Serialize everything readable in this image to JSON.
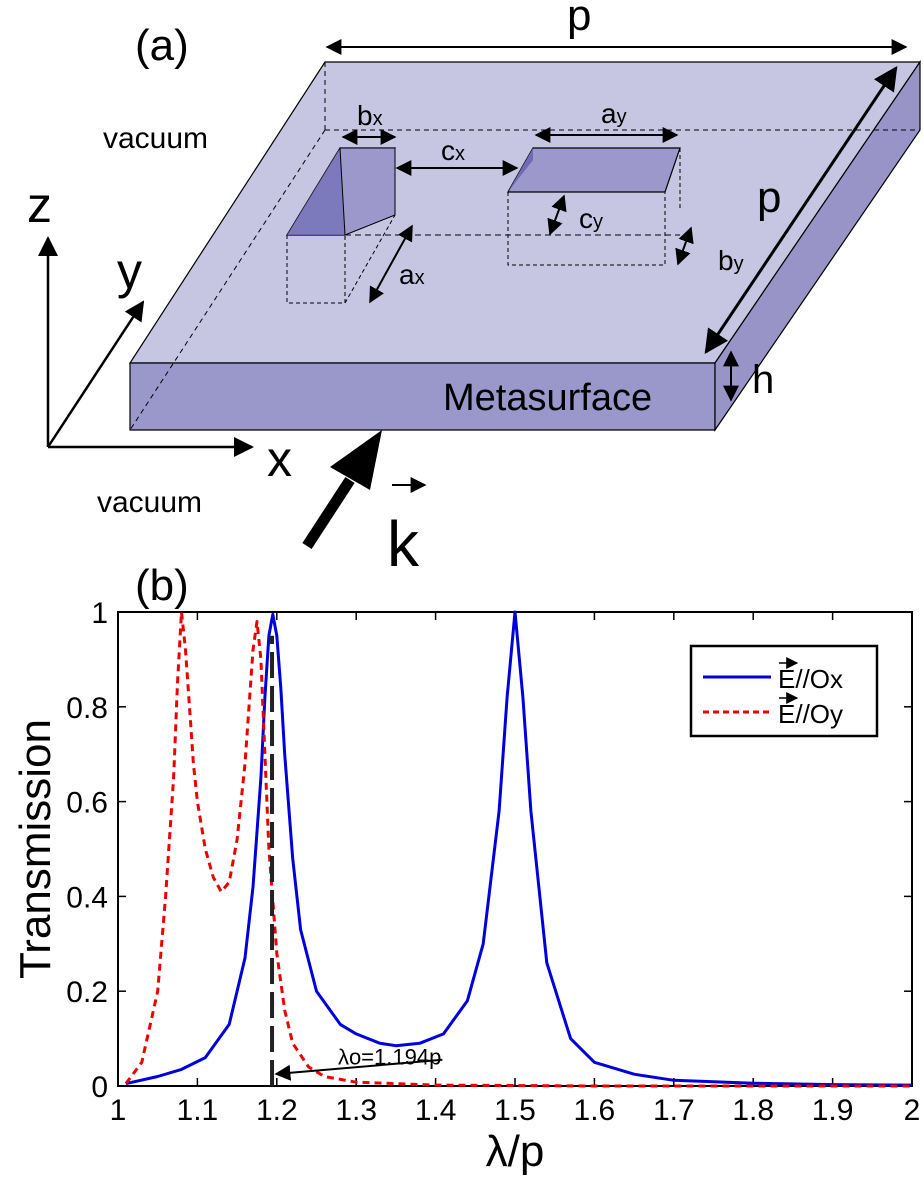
{
  "panel_a": {
    "label": "(a)",
    "vacuum_top": "vacuum",
    "vacuum_bottom": "vacuum",
    "slab_label": "Metasurface",
    "dims": {
      "p_top": "p",
      "p_side": "p",
      "h": "h",
      "bx": "b",
      "bx_sub": "x",
      "ay": "a",
      "ay_sub": "y",
      "cx": "c",
      "cx_sub": "x",
      "cy": "c",
      "cy_sub": "y",
      "ax": "a",
      "ax_sub": "x",
      "by": "b",
      "by_sub": "y"
    },
    "axes": {
      "z": "z",
      "y": "y",
      "x": "x"
    },
    "wavevector": "k"
  },
  "panel_b": {
    "label": "(b)"
  },
  "chart_data": {
    "type": "line",
    "xlabel": "λ/p",
    "ylabel": "Transmission",
    "xlim": [
      1,
      2
    ],
    "ylim": [
      0,
      1
    ],
    "xticks": [
      "1",
      "1.1",
      "1.2",
      "1.3",
      "1.4",
      "1.5",
      "1.6",
      "1.7",
      "1.8",
      "1.9",
      "2"
    ],
    "yticks": [
      "0",
      "0.2",
      "0.4",
      "0.6",
      "0.8",
      "1"
    ],
    "legend_position": "top-right",
    "series": [
      {
        "name": "E//Ox",
        "legend_prefix": "E",
        "legend_suffix": "//Ox",
        "color": "#0000dd",
        "style": "solid",
        "x": [
          1.01,
          1.05,
          1.08,
          1.11,
          1.14,
          1.16,
          1.17,
          1.18,
          1.185,
          1.19,
          1.195,
          1.2,
          1.205,
          1.21,
          1.22,
          1.23,
          1.25,
          1.28,
          1.3,
          1.33,
          1.35,
          1.38,
          1.41,
          1.44,
          1.46,
          1.48,
          1.49,
          1.5,
          1.51,
          1.52,
          1.54,
          1.57,
          1.6,
          1.65,
          1.7,
          1.8,
          1.9,
          2.0
        ],
        "y": [
          0.005,
          0.02,
          0.035,
          0.06,
          0.13,
          0.27,
          0.42,
          0.65,
          0.82,
          0.95,
          0.995,
          0.95,
          0.84,
          0.7,
          0.48,
          0.33,
          0.2,
          0.13,
          0.11,
          0.09,
          0.085,
          0.09,
          0.11,
          0.18,
          0.3,
          0.58,
          0.82,
          1.0,
          0.82,
          0.58,
          0.26,
          0.1,
          0.05,
          0.025,
          0.012,
          0.006,
          0.003,
          0.002
        ]
      },
      {
        "name": "E//Oy",
        "legend_prefix": "E",
        "legend_suffix": "//Oy",
        "color": "#ee0000",
        "style": "dashed",
        "x": [
          1.01,
          1.03,
          1.05,
          1.06,
          1.07,
          1.075,
          1.08,
          1.085,
          1.09,
          1.095,
          1.1,
          1.11,
          1.12,
          1.13,
          1.14,
          1.15,
          1.16,
          1.165,
          1.17,
          1.175,
          1.18,
          1.185,
          1.19,
          1.2,
          1.21,
          1.22,
          1.24,
          1.26,
          1.3,
          1.4,
          1.6,
          2.0
        ],
        "y": [
          0.005,
          0.05,
          0.2,
          0.4,
          0.65,
          0.85,
          1.0,
          0.92,
          0.8,
          0.68,
          0.6,
          0.5,
          0.44,
          0.41,
          0.43,
          0.52,
          0.68,
          0.8,
          0.92,
          0.98,
          0.9,
          0.7,
          0.5,
          0.28,
          0.16,
          0.09,
          0.04,
          0.02,
          0.008,
          0.002,
          0.0,
          0.0
        ]
      }
    ],
    "marker_line": {
      "x": 1.194,
      "label": "λo=1.194p"
    }
  }
}
